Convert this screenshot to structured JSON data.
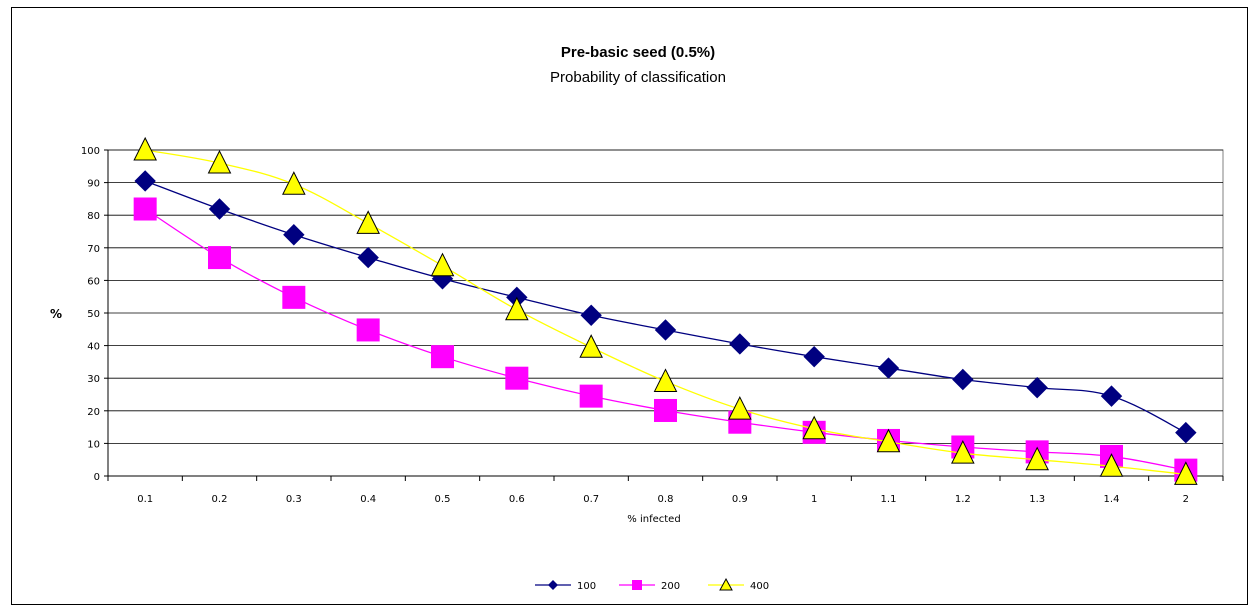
{
  "chart_data": {
    "type": "line",
    "title": "Pre-basic seed (0.5%)",
    "subtitle": "Probability of classification",
    "xlabel": "% infected",
    "ylabel": "%",
    "categories": [
      "0.1",
      "0.2",
      "0.3",
      "0.4",
      "0.5",
      "0.6",
      "0.7",
      "0.8",
      "0.9",
      "1",
      "1.1",
      "1.2",
      "1.3",
      "1.4",
      "2"
    ],
    "ylim": [
      0,
      100
    ],
    "yticks": [
      "0",
      "10",
      "20",
      "30",
      "40",
      "50",
      "60",
      "70",
      "80",
      "90",
      "100"
    ],
    "grid": true,
    "legend_position": "bottom",
    "series": [
      {
        "name": "100",
        "color": "#000080",
        "marker": "diamond",
        "values": [
          90.5,
          81.9,
          74.0,
          67.0,
          60.5,
          54.8,
          49.3,
          44.8,
          40.5,
          36.6,
          33.1,
          29.6,
          27.1,
          24.5,
          13.3
        ]
      },
      {
        "name": "200",
        "color": "#FF00FF",
        "marker": "square",
        "values": [
          81.9,
          67.0,
          54.8,
          44.8,
          36.6,
          30.0,
          24.5,
          20.1,
          16.5,
          13.4,
          10.9,
          8.9,
          7.4,
          6.0,
          1.8
        ]
      },
      {
        "name": "400",
        "color": "#FFFF00",
        "marker": "triangle",
        "values": [
          100,
          96.0,
          89.5,
          77.5,
          64.5,
          51.0,
          39.5,
          29.0,
          20.5,
          14.5,
          10.5,
          7.0,
          5.0,
          3.0,
          0.5
        ]
      }
    ]
  }
}
